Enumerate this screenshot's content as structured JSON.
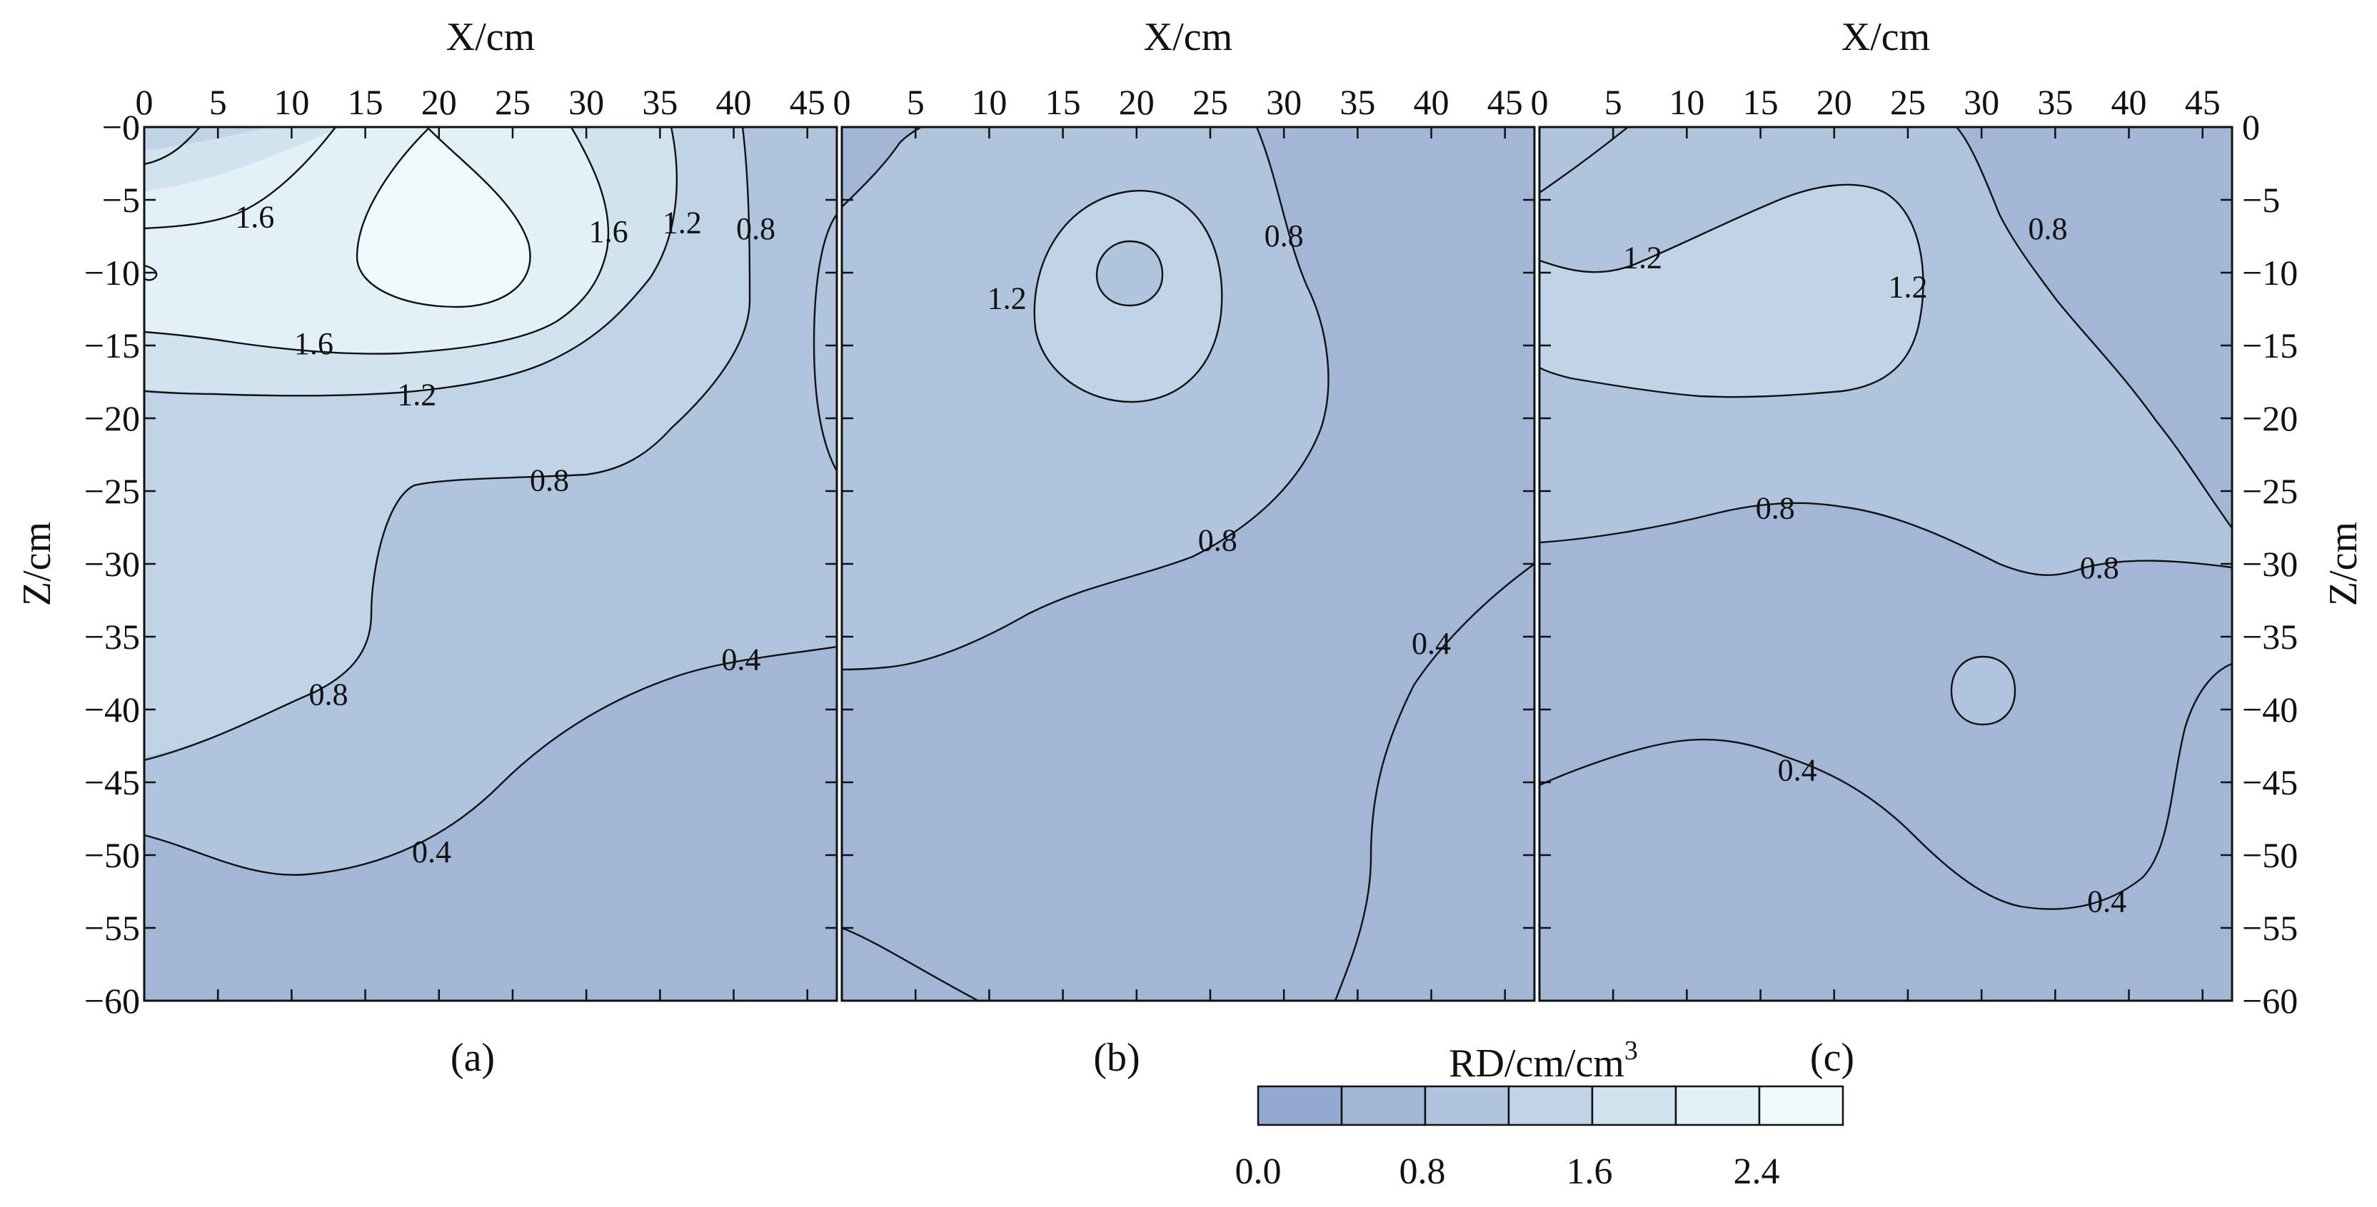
{
  "figure": {
    "colorbar": {
      "title": "RD/cm/cm",
      "title_superscript": "3",
      "levels": [
        0.0,
        0.4,
        0.8,
        1.2,
        1.6,
        2.0,
        2.4,
        2.8
      ],
      "colors": [
        "#93a9d0",
        "#a2b7d6",
        "#b1c4de",
        "#c0d3e7",
        "#d1e3ef",
        "#e2f1f8",
        "#eefafc"
      ],
      "tick_labels": [
        "0.0",
        "0.8",
        "1.6",
        "2.4"
      ]
    },
    "axis_color": "#111111",
    "line_color": "#111111"
  },
  "chart_data": [
    {
      "type": "contour",
      "panel_label": "(a)",
      "xlabel": "X/cm",
      "ylabel": "Z/cm",
      "xlim": [
        0,
        47
      ],
      "ylim": [
        -60,
        0
      ],
      "xticks": [
        0,
        5,
        10,
        15,
        20,
        25,
        30,
        35,
        40,
        45
      ],
      "xtick_labels": [
        "0",
        "5",
        "10",
        "15",
        "20",
        "25",
        "30",
        "35",
        "40",
        "45"
      ],
      "yticks": [
        0,
        -5,
        -10,
        -15,
        -20,
        -25,
        -30,
        -35,
        -40,
        -45,
        -50,
        -55,
        -60
      ],
      "ytick_labels": [
        "−0",
        "−5",
        "−10",
        "−15",
        "−20",
        "−25",
        "−30",
        "−35",
        "−40",
        "−45",
        "−50",
        "−55",
        "−60"
      ],
      "contour_levels": [
        0.4,
        0.8,
        1.2,
        1.6,
        2.0
      ],
      "contour_labels": [
        {
          "text": "1.6",
          "x": 7.5,
          "z": -6.2
        },
        {
          "text": "1.6",
          "x": 11.5,
          "z": -14.9
        },
        {
          "text": "1.2",
          "x": 18.5,
          "z": -18.4
        },
        {
          "text": "1.6",
          "x": 31.5,
          "z": -7.2
        },
        {
          "text": "1.2",
          "x": 36.5,
          "z": -6.6
        },
        {
          "text": "0.8",
          "x": 41.5,
          "z": -7.0
        },
        {
          "text": "0.8",
          "x": 27.5,
          "z": -24.3
        },
        {
          "text": "0.8",
          "x": 12.5,
          "z": -39.0
        },
        {
          "text": "0.4",
          "x": 40.5,
          "z": -36.6
        },
        {
          "text": "0.4",
          "x": 19.5,
          "z": -49.8
        }
      ],
      "regions": [
        {
          "level_index": 1,
          "label": "0.4–0.8"
        },
        {
          "level_index": 2,
          "label": "0.8–1.2"
        },
        {
          "level_index": 3,
          "label": "1.2–1.6"
        },
        {
          "level_index": 4,
          "label": "1.6–2.0"
        },
        {
          "level_index": 5,
          "label": "2.0–2.4"
        }
      ]
    },
    {
      "type": "contour",
      "panel_label": "(b)",
      "xlabel": "X/cm",
      "ylabel": "",
      "xlim": [
        0,
        47
      ],
      "ylim": [
        -60,
        0
      ],
      "xticks": [
        0,
        5,
        10,
        15,
        20,
        25,
        30,
        35,
        40,
        45
      ],
      "xtick_labels": [
        "0",
        "5",
        "10",
        "15",
        "20",
        "25",
        "30",
        "35",
        "40",
        "45"
      ],
      "yticks": [
        0,
        -5,
        -10,
        -15,
        -20,
        -25,
        -30,
        -35,
        -40,
        -45,
        -50,
        -55,
        -60
      ],
      "contour_levels": [
        0.4,
        0.8,
        1.2
      ],
      "contour_labels": [
        {
          "text": "1.2",
          "x": 11.2,
          "z": -11.8
        },
        {
          "text": "0.8",
          "x": 30.0,
          "z": -7.5
        },
        {
          "text": "0.8",
          "x": 25.5,
          "z": -28.4
        },
        {
          "text": "0.4",
          "x": 40.0,
          "z": -35.5
        }
      ],
      "regions": [
        {
          "level_index": 1,
          "label": "0.4–0.8"
        },
        {
          "level_index": 2,
          "label": "0.8–1.2"
        },
        {
          "level_index": 3,
          "label": "1.2–1.6"
        }
      ]
    },
    {
      "type": "contour",
      "panel_label": "(c)",
      "xlabel": "X/cm",
      "ylabel": "Z/cm",
      "xlim": [
        0,
        47
      ],
      "ylim": [
        -60,
        0
      ],
      "xticks": [
        0,
        5,
        10,
        15,
        20,
        25,
        30,
        35,
        40,
        45
      ],
      "xtick_labels": [
        "0",
        "5",
        "10",
        "15",
        "20",
        "25",
        "30",
        "35",
        "40",
        "45"
      ],
      "yticks": [
        0,
        -5,
        -10,
        -15,
        -20,
        -25,
        -30,
        -35,
        -40,
        -45,
        -50,
        -55,
        -60
      ],
      "ytick_labels": [
        "0",
        "−5",
        "−10",
        "−15",
        "−20",
        "−25",
        "−30",
        "−35",
        "−40",
        "−45",
        "−50",
        "−55",
        "−60"
      ],
      "contour_levels": [
        0.4,
        0.8,
        1.2
      ],
      "contour_labels": [
        {
          "text": "1.2",
          "x": 7.0,
          "z": -9.0
        },
        {
          "text": "1.2",
          "x": 25.0,
          "z": -11.0
        },
        {
          "text": "0.8",
          "x": 34.5,
          "z": -7.0
        },
        {
          "text": "0.8",
          "x": 16.0,
          "z": -26.2
        },
        {
          "text": "0.8",
          "x": 38.0,
          "z": -30.3
        },
        {
          "text": "0.4",
          "x": 17.5,
          "z": -44.2
        },
        {
          "text": "0.4",
          "x": 38.5,
          "z": -53.2
        }
      ],
      "regions": [
        {
          "level_index": 1,
          "label": "0.4–0.8"
        },
        {
          "level_index": 2,
          "label": "0.8–1.2"
        },
        {
          "level_index": 3,
          "label": "1.2–1.6"
        }
      ]
    }
  ]
}
